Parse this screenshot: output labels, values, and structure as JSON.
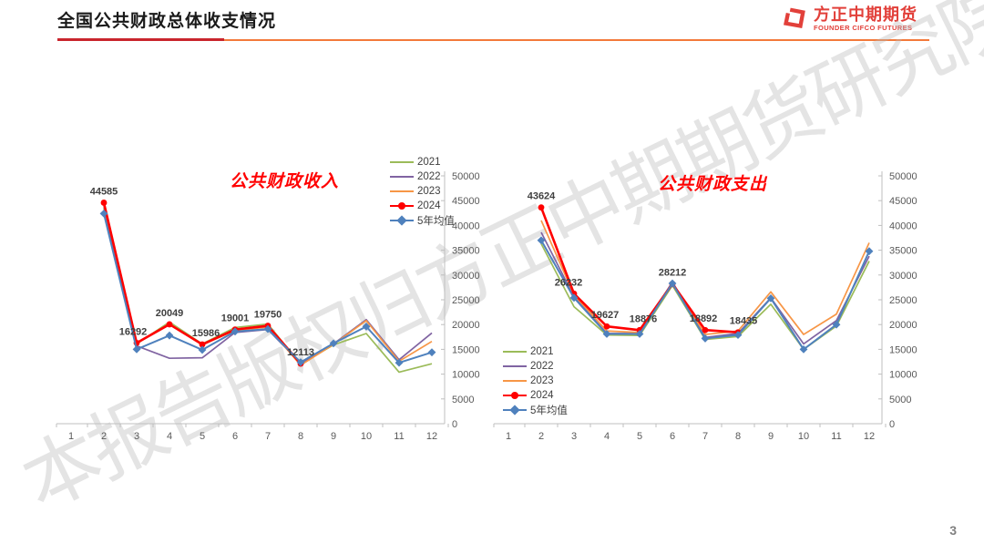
{
  "header": {
    "title": "全国公共财政总体收支情况",
    "logo": {
      "name": "方正中期期货",
      "subtitle": "FOUNDER CIFCO FUTURES",
      "color": "#e2403a"
    }
  },
  "watermark": "本报告版权归方正中期期货研究院所有",
  "page_number": "3",
  "chart_data": [
    {
      "type": "line",
      "title": "公共财政收入",
      "title_color": "#ff0000",
      "x": [
        1,
        2,
        3,
        4,
        5,
        6,
        7,
        8,
        9,
        10,
        11,
        12
      ],
      "ylim": [
        0,
        50000
      ],
      "ytick_step": 5000,
      "grid": false,
      "legend_position": "top-right",
      "series": [
        {
          "name": "2021",
          "color": "#9bbb59",
          "values": [
            null,
            43500,
            16100,
            20500,
            16100,
            19400,
            20100,
            12000,
            15900,
            18200,
            10400,
            12100
          ]
        },
        {
          "name": "2022",
          "color": "#8064a2",
          "values": [
            null,
            43900,
            15700,
            13200,
            13300,
            18400,
            19000,
            12200,
            16100,
            21000,
            12900,
            18300
          ]
        },
        {
          "name": "2023",
          "color": "#f79646",
          "values": [
            null,
            44200,
            16200,
            20200,
            15900,
            18800,
            19500,
            11800,
            16000,
            20800,
            12600,
            16600
          ]
        },
        {
          "name": "2024",
          "color": "#ff0000",
          "marker": "circle",
          "width": 2.6,
          "values": [
            null,
            44585,
            16292,
            20049,
            15986,
            19001,
            19750,
            12113,
            null,
            null,
            null,
            null
          ]
        },
        {
          "name": "5年均值",
          "color": "#4f81bd",
          "marker": "diamond",
          "width": 2,
          "values": [
            null,
            42400,
            15000,
            17800,
            14900,
            18600,
            19100,
            12400,
            16200,
            19600,
            12300,
            14400
          ]
        }
      ],
      "labels": [
        {
          "month": 2,
          "value": 44585
        },
        {
          "month": 3,
          "value": 16292,
          "dx": -4
        },
        {
          "month": 4,
          "value": 20049
        },
        {
          "month": 5,
          "value": 15986,
          "dx": 4
        },
        {
          "month": 6,
          "value": 19001
        },
        {
          "month": 7,
          "value": 19750
        },
        {
          "month": 8,
          "value": 12113
        }
      ]
    },
    {
      "type": "line",
      "title": "公共财政支出",
      "title_color": "#ff0000",
      "x": [
        1,
        2,
        3,
        4,
        5,
        6,
        7,
        8,
        9,
        10,
        11,
        12
      ],
      "ylim": [
        0,
        50000
      ],
      "ytick_step": 5000,
      "grid": false,
      "legend_position": "bottom-left",
      "series": [
        {
          "name": "2021",
          "color": "#9bbb59",
          "values": [
            null,
            36300,
            23600,
            17900,
            17800,
            27900,
            17000,
            17600,
            24100,
            15000,
            19700,
            32800
          ]
        },
        {
          "name": "2022",
          "color": "#8064a2",
          "values": [
            null,
            38600,
            25600,
            18200,
            18200,
            28600,
            17400,
            18200,
            25400,
            16100,
            20800,
            33800
          ]
        },
        {
          "name": "2023",
          "color": "#f79646",
          "values": [
            null,
            41000,
            26000,
            18700,
            18400,
            28400,
            18000,
            18700,
            26600,
            18000,
            22100,
            36500
          ]
        },
        {
          "name": "2024",
          "color": "#ff0000",
          "marker": "circle",
          "width": 2.6,
          "values": [
            null,
            43624,
            26232,
            19627,
            18876,
            28212,
            18892,
            18435,
            null,
            null,
            null,
            null
          ]
        },
        {
          "name": "5年均值",
          "color": "#4f81bd",
          "marker": "diamond",
          "width": 2,
          "values": [
            null,
            37000,
            25400,
            18100,
            18100,
            28300,
            17200,
            17900,
            25300,
            15000,
            20000,
            34800
          ]
        }
      ],
      "labels": [
        {
          "month": 2,
          "value": 43624
        },
        {
          "month": 3,
          "value": 26232,
          "dx": -6
        },
        {
          "month": 4,
          "value": 19627,
          "dx": -2
        },
        {
          "month": 5,
          "value": 18876,
          "dx": 4
        },
        {
          "month": 6,
          "value": 28212
        },
        {
          "month": 7,
          "value": 18892,
          "dx": -2
        },
        {
          "month": 8,
          "value": 18435,
          "dx": 6
        }
      ]
    }
  ]
}
